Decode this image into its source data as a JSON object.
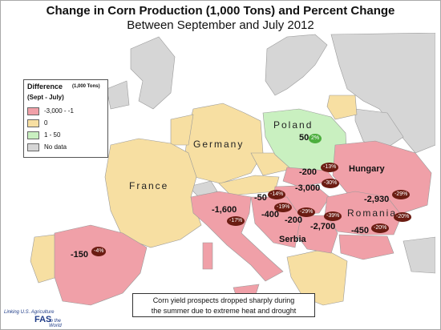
{
  "title": "Change in Corn Production (1,000 Tons) and Percent Change",
  "subtitle": "Between September and July 2012",
  "legend": {
    "title": "Difference",
    "units": "(1,000 Tons)",
    "subtitle": "(Sept - July)",
    "items": [
      {
        "label": "-3,000 - -1",
        "color": "#f0a0a8"
      },
      {
        "label": "0",
        "color": "#f7dfa2"
      },
      {
        "label": "1 - 50",
        "color": "#c9f0c0"
      },
      {
        "label": "No data",
        "color": "#d6d6d6"
      }
    ]
  },
  "countries": [
    {
      "name": "Poland"
    },
    {
      "name": "Germany"
    },
    {
      "name": "France"
    },
    {
      "name": "Romania"
    }
  ],
  "callouts": [
    "Hungary",
    "Serbia"
  ],
  "values": [
    {
      "id": "poland",
      "value": "50",
      "pct": "2%",
      "positive": true
    },
    {
      "id": "slovakia",
      "value": "-200",
      "pct": "-13%"
    },
    {
      "id": "hungary",
      "value": "-3,000",
      "pct": "-30%"
    },
    {
      "id": "ukraine",
      "value": "-2,930",
      "pct": "-29%"
    },
    {
      "id": "romania",
      "pct": "-39%"
    },
    {
      "id": "moldova",
      "pct": "-20%"
    },
    {
      "id": "bulgaria",
      "value": "-450",
      "pct": "-20%"
    },
    {
      "id": "serbia",
      "value": "-2,700",
      "pct": "-29%"
    },
    {
      "id": "croatia",
      "value": "-200",
      "pct": "-19%"
    },
    {
      "id": "slovenia",
      "value": "-50",
      "pct": "-14%"
    },
    {
      "id": "bosnia",
      "value": "-400"
    },
    {
      "id": "italy",
      "value": "-1,600",
      "pct": "-17%"
    },
    {
      "id": "spain",
      "value": "-150",
      "pct": "-4%"
    }
  ],
  "note": {
    "line1": "Corn yield prospects dropped sharply during",
    "line2": "the summer due to extreme heat and drought"
  },
  "logo": {
    "line1": "Linking U.S. Agriculture",
    "mark": "FAS",
    "line2": "to the World"
  },
  "colors": {
    "decrease": "#f0a0a8",
    "zero": "#f7dfa2",
    "increase": "#c9f0c0",
    "nodata": "#d6d6d6",
    "water": "#ffffff",
    "border": "#9a9a9a"
  }
}
